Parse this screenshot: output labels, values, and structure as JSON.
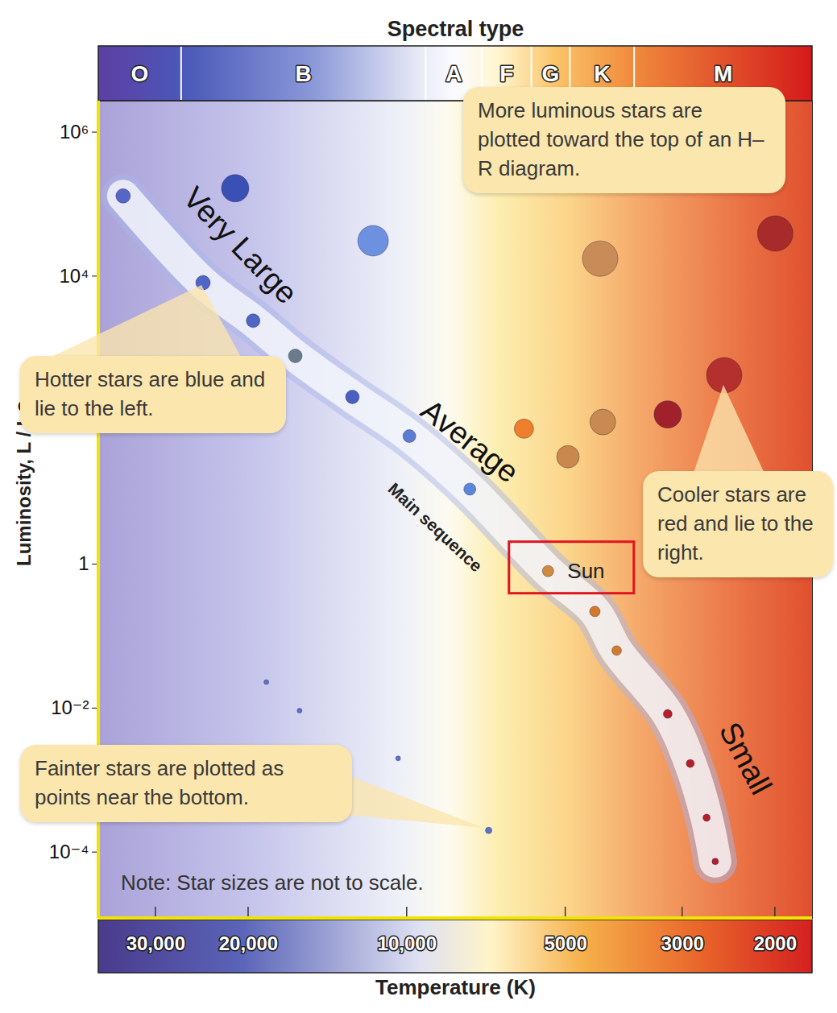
{
  "chart_data": {
    "type": "scatter",
    "spectral_type": {
      "label": "Spectral type",
      "classes": [
        "O",
        "B",
        "A",
        "F",
        "G",
        "K",
        "M"
      ],
      "boundaries": [
        26800,
        9200,
        7200,
        5800,
        4900,
        3700
      ]
    },
    "x_label": "Temperature (K)",
    "y_label": "Luminosity, L / L⊙",
    "log": true,
    "grid": false,
    "xlim": [
      38500,
      1700
    ],
    "ylim": [
      1.2e-05,
      2700000
    ],
    "xticks": [
      {
        "value": 30000,
        "label": "30,000"
      },
      {
        "value": 20000,
        "label": "20,000"
      },
      {
        "value": 10000,
        "label": "10,000"
      },
      5000,
      3000,
      2000
    ],
    "yticks": [
      {
        "value": 1000000,
        "label": "10⁶"
      },
      {
        "value": 10000,
        "label": "10⁴"
      },
      1,
      {
        "value": 0.01,
        "label": "10⁻²"
      },
      {
        "value": 0.0001,
        "label": "10⁻⁴"
      }
    ],
    "series": [
      {
        "name": "Main sequence",
        "x": [
          34600,
          24400,
          19600,
          16300,
          12700,
          9900,
          7600,
          5400,
          4400,
          4000,
          3200,
          2900,
          2700,
          2600
        ],
        "values": [
          130000,
          8100,
          2400,
          780,
          210,
          60,
          11,
          0.8,
          0.22,
          0.063,
          0.0083,
          0.0017,
          0.0003,
          7.4e-05
        ],
        "sizes": [
          18,
          18,
          17,
          17,
          17,
          16,
          15,
          14,
          13,
          12,
          11,
          10,
          9,
          8
        ],
        "colors": [
          "#5566c8",
          "#4f65c7",
          "#4e66c4",
          "#6c7b8c",
          "#4a60c0",
          "#5a7cd4",
          "#5b86de",
          "#cf8a40",
          "#d4782e",
          "#d27a30",
          "#b51f2a",
          "#b51f2a",
          "#b51f2a",
          "#b51f2a"
        ],
        "labels": [
          null,
          null,
          null,
          null,
          null,
          null,
          null,
          "Sun",
          null,
          null,
          null,
          null,
          null,
          null
        ]
      },
      {
        "x": [
          21200,
          11600,
          4300,
          2000,
          2500,
          3200,
          4250,
          6000,
          4950,
          18500,
          16000,
          10400,
          7000
        ],
        "values": [
          166000,
          31000,
          17500,
          39000,
          420,
          120,
          94,
          76,
          31,
          0.023,
          0.0092,
          0.002,
          0.0002
        ],
        "sizes": [
          34,
          38,
          44,
          44,
          44,
          34,
          32,
          24,
          28,
          6,
          6,
          6,
          8
        ],
        "colors": [
          "#3b50b5",
          "#6d90e0",
          "#c98c58",
          "#a82a2a",
          "#b3302e",
          "#a0212c",
          "#c98a52",
          "#ee7f2c",
          "#c9884c",
          "#5b72d2",
          "#5b72d2",
          "#5b72d2",
          "#5b72d2"
        ]
      }
    ],
    "annotations": [
      "Very Large",
      "Average",
      "Small",
      "More luminous stars are plotted toward the top of an H–R diagram.",
      "Hotter stars are blue and lie to the left.",
      "Cooler stars are red and lie to the right.",
      "Fainter stars are plotted as points near the bottom.",
      "Note: Star sizes are not to scale."
    ]
  }
}
